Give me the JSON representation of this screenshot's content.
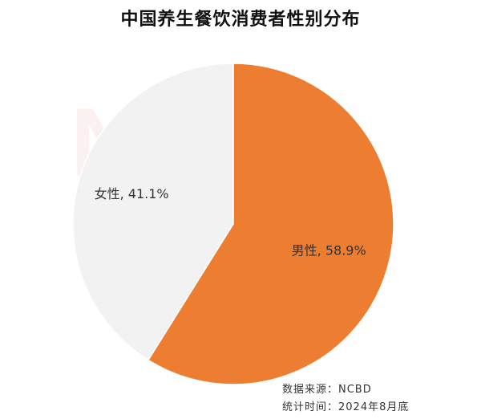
{
  "chart_data": {
    "type": "pie",
    "title": "中国养生餐饮消费者性别分布",
    "slices": [
      {
        "label": "男性",
        "value": 58.9,
        "display": "男性, 58.9%",
        "color": "#ED7D31"
      },
      {
        "label": "女性",
        "value": 41.1,
        "display": "女性, 41.1%",
        "color": "#F2F2F2"
      }
    ],
    "start_angle_deg": 0,
    "direction": "clockwise"
  },
  "footer": {
    "source": "数据来源：NCBD",
    "time": "统计时间：2024年8月底"
  },
  "watermark": {
    "text": "NCBD"
  }
}
